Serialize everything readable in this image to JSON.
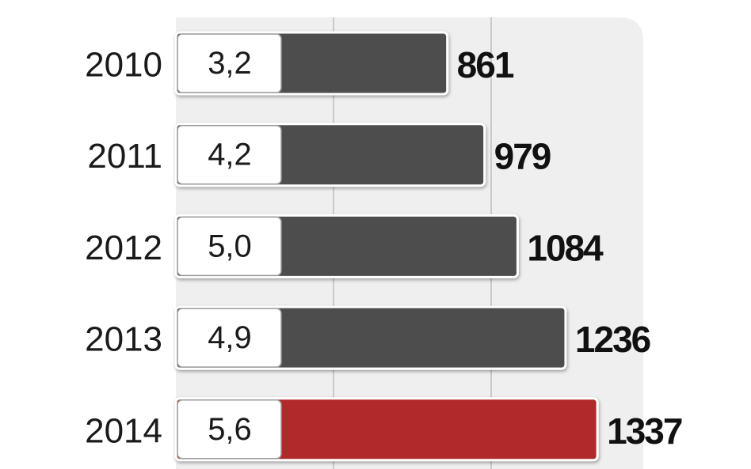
{
  "chart_data": {
    "type": "bar",
    "orientation": "horizontal",
    "categories": [
      "2010",
      "2011",
      "2012",
      "2013",
      "2014"
    ],
    "values": [
      861,
      979,
      1084,
      1236,
      1337
    ],
    "colors": [
      "#4d4d4d",
      "#4d4d4d",
      "#4d4d4d",
      "#4d4d4d",
      "#b02a2c"
    ],
    "box_values": [
      3.2,
      4.2,
      5.0,
      4.9,
      5.6
    ],
    "box_value_labels": [
      "3,2",
      "4,2",
      "5,0",
      "4,9",
      "5,6"
    ],
    "xlim": [
      0,
      1500
    ],
    "xticks": [
      500,
      1000
    ],
    "grid": true
  }
}
